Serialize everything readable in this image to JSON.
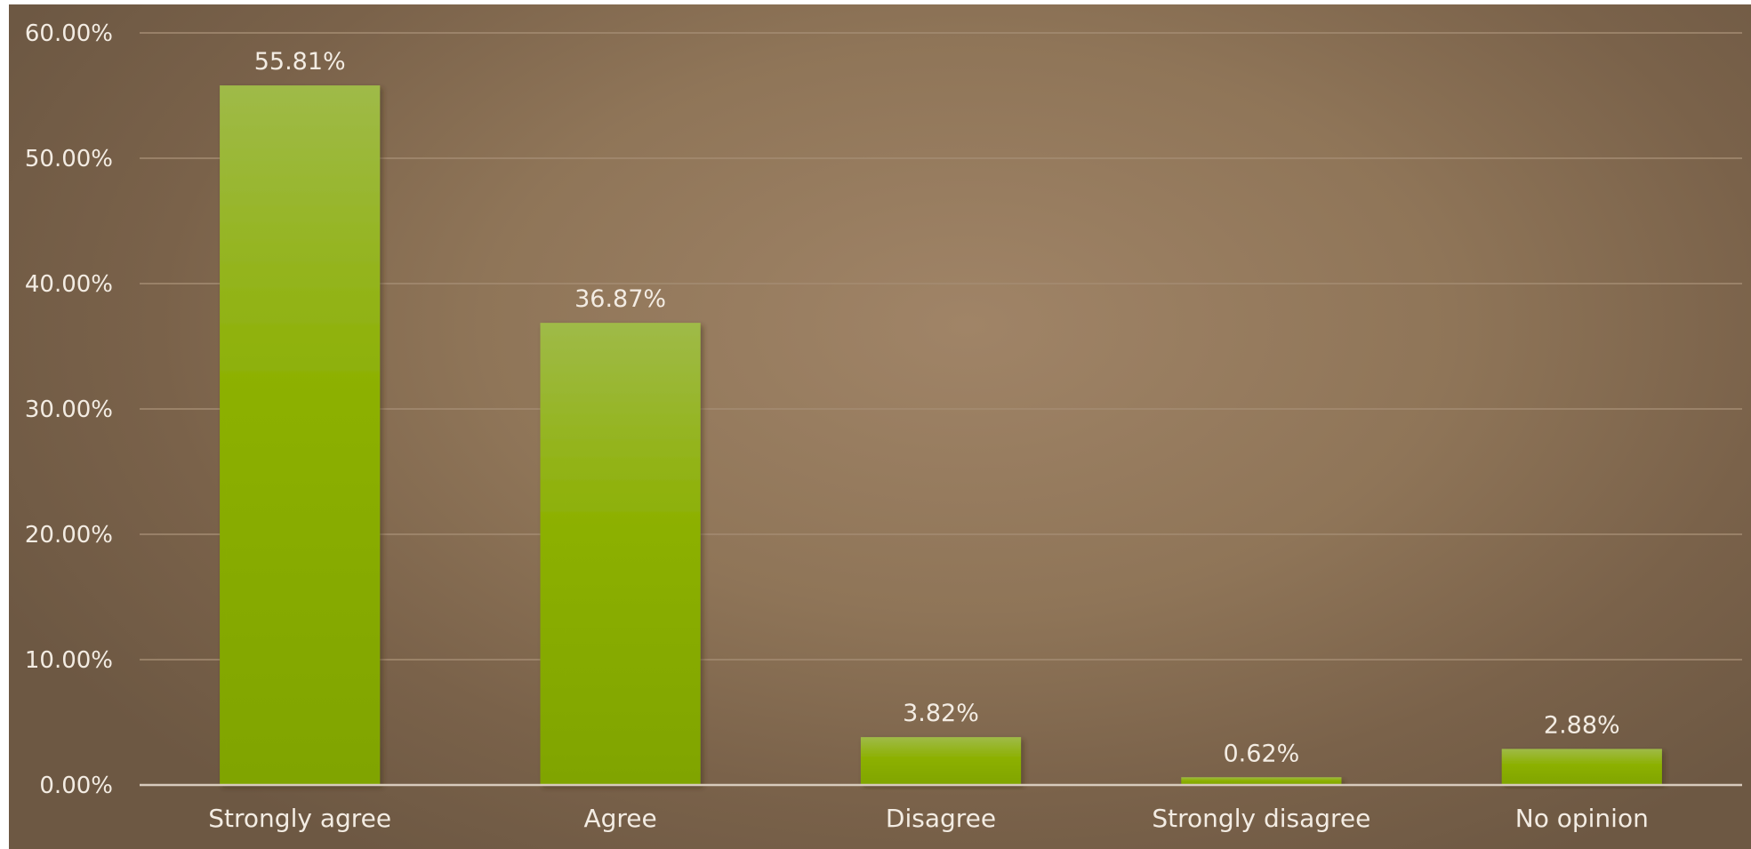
{
  "chart_data": {
    "type": "bar",
    "title": "",
    "xlabel": "",
    "ylabel": "",
    "categories": [
      "Strongly agree",
      "Agree",
      "Disagree",
      "Strongly disagree",
      "No opinion"
    ],
    "values": [
      55.81,
      36.87,
      3.82,
      0.62,
      2.88
    ],
    "data_labels": [
      "55.81%",
      "36.87%",
      "3.82%",
      "0.62%",
      "2.88%"
    ],
    "ylim": [
      0,
      60
    ],
    "yticks": [
      0,
      10,
      20,
      30,
      40,
      50,
      60
    ],
    "ytick_labels": [
      "0.00%",
      "10.00%",
      "20.00%",
      "30.00%",
      "40.00%",
      "50.00%",
      "60.00%"
    ],
    "grid": true,
    "legend": "none",
    "colors": {
      "bar_top": "#9fba48",
      "bar_bottom": "#80a400",
      "text": "#f3ece3",
      "gridline": "#a48c73",
      "axis": "#d8cbbd"
    }
  }
}
